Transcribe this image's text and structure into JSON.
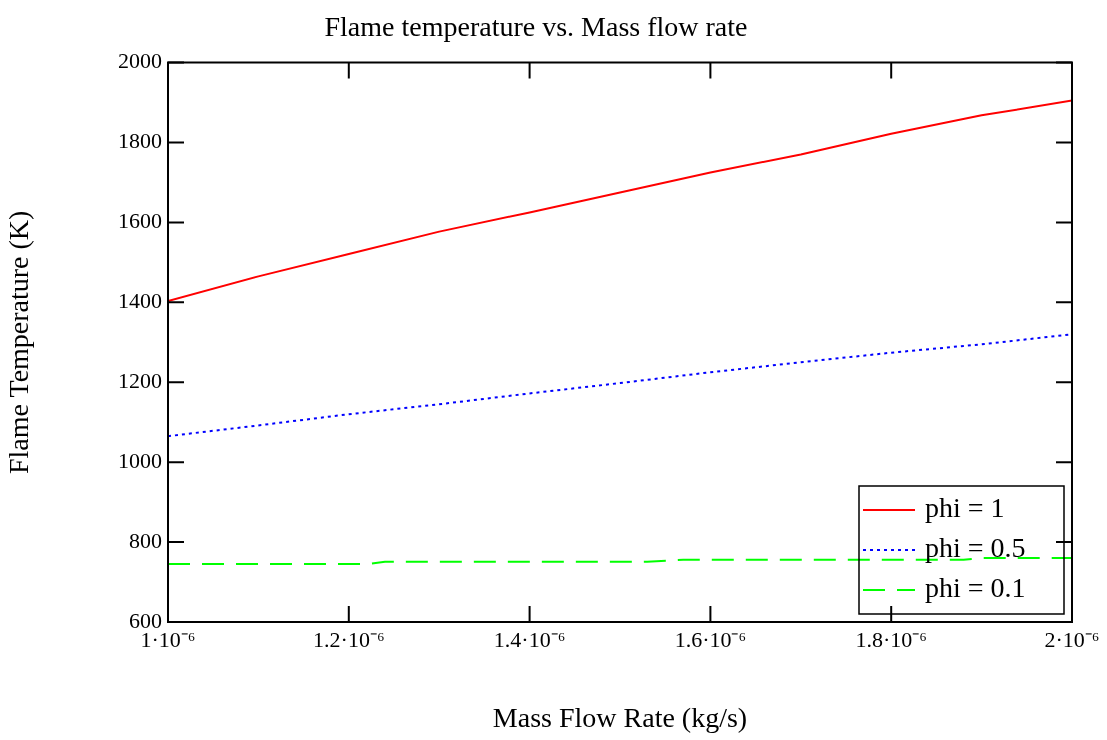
{
  "chart_data": {
    "type": "line",
    "title": "Flame temperature vs. Mass flow rate",
    "xlabel": "Mass Flow Rate (kg/s)",
    "ylabel": "Flame Temperature (K)",
    "xlim": [
      1e-06,
      2e-06
    ],
    "xticks": [
      {
        "value": 1e-06,
        "label": "1·10⁻⁶"
      },
      {
        "value": 1.2e-06,
        "label": "1.2·10⁻⁶"
      },
      {
        "value": 1.4e-06,
        "label": "1.4·10⁻⁶"
      },
      {
        "value": 1.6e-06,
        "label": "1.6·10⁻⁶"
      },
      {
        "value": 1.8e-06,
        "label": "1.8·10⁻⁶"
      },
      {
        "value": 2e-06,
        "label": "2·10⁻⁶"
      }
    ],
    "ylim": [
      600,
      2000
    ],
    "yticks": [
      600,
      800,
      1000,
      1200,
      1400,
      1600,
      1800,
      2000
    ],
    "grid": false,
    "legend": "bottom right",
    "marker": "none",
    "series": [
      {
        "name": "phi = 1",
        "color": "#ff0000",
        "line_style": "solid",
        "x": [
          1e-06,
          1.1e-06,
          1.2e-06,
          1.3e-06,
          1.4e-06,
          1.5e-06,
          1.6e-06,
          1.7e-06,
          1.8e-06,
          1.9e-06,
          2e-06
        ],
        "values": [
          1403,
          1465,
          1521,
          1577,
          1625,
          1675,
          1725,
          1770,
          1822,
          1868,
          1905
        ]
      },
      {
        "name": "phi = 0.5",
        "color": "#0000ff",
        "line_style": "dotted",
        "x": [
          1e-06,
          1.1e-06,
          1.2e-06,
          1.3e-06,
          1.4e-06,
          1.5e-06,
          1.6e-06,
          1.7e-06,
          1.8e-06,
          1.9e-06,
          2e-06
        ],
        "values": [
          1065,
          1092,
          1120,
          1145,
          1172,
          1198,
          1225,
          1250,
          1274,
          1295,
          1320
        ]
      },
      {
        "name": "phi = 0.1",
        "color": "#00ff00",
        "line_style": "dashed",
        "x": [
          1e-06,
          1.22e-06,
          1.24e-06,
          1.53e-06,
          1.57e-06,
          1.88e-06,
          1.9e-06,
          2e-06
        ],
        "values": [
          745,
          745,
          751,
          751,
          756,
          756,
          760,
          760
        ]
      }
    ]
  }
}
